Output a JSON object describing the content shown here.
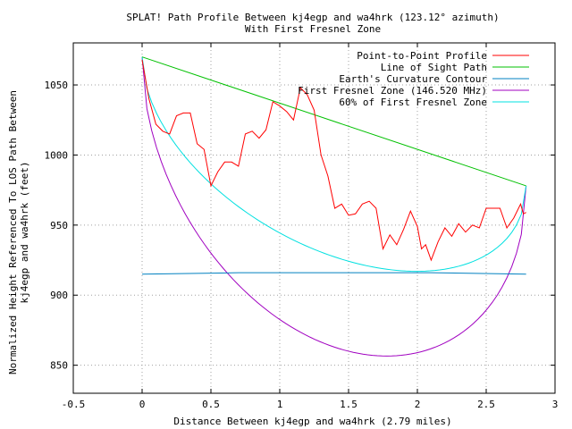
{
  "chart_data": {
    "type": "line",
    "title": "SPLAT! Path Profile Between kj4egp and wa4hrk (123.12° azimuth)",
    "subtitle": "With First Fresnel Zone",
    "xlabel": "Distance Between kj4egp and wa4hrk (2.79 miles)",
    "ylabel_lines": [
      "Normalized Height Referenced To LOS Path Between",
      "kj4egp and wa4hrk (feet)"
    ],
    "xlim": [
      -0.5,
      3
    ],
    "ylim": [
      830,
      1080
    ],
    "xticks": [
      -0.5,
      0,
      0.5,
      1,
      1.5,
      2,
      2.5,
      3
    ],
    "xtick_labels": [
      "-0.5",
      "0",
      "0.5",
      "1",
      "1.5",
      "2",
      "2.5",
      "3"
    ],
    "yticks": [
      850,
      900,
      950,
      1000,
      1050
    ],
    "ytick_labels": [
      "850",
      "900",
      "950",
      "1000",
      "1050"
    ],
    "grid": true,
    "legend_position": "top-right",
    "series": [
      {
        "name": "Point-to-Point Profile",
        "color": "#ff0000",
        "points": [
          [
            0,
            1068
          ],
          [
            0.05,
            1040
          ],
          [
            0.1,
            1022
          ],
          [
            0.15,
            1017
          ],
          [
            0.2,
            1015
          ],
          [
            0.25,
            1028
          ],
          [
            0.3,
            1030
          ],
          [
            0.35,
            1030
          ],
          [
            0.4,
            1008
          ],
          [
            0.45,
            1004
          ],
          [
            0.5,
            978
          ],
          [
            0.55,
            988
          ],
          [
            0.6,
            995
          ],
          [
            0.65,
            995
          ],
          [
            0.7,
            992
          ],
          [
            0.75,
            1015
          ],
          [
            0.8,
            1017
          ],
          [
            0.85,
            1012
          ],
          [
            0.9,
            1018
          ],
          [
            0.95,
            1038
          ],
          [
            1.0,
            1035
          ],
          [
            1.05,
            1031
          ],
          [
            1.1,
            1025
          ],
          [
            1.15,
            1048
          ],
          [
            1.2,
            1043
          ],
          [
            1.25,
            1032
          ],
          [
            1.3,
            1000
          ],
          [
            1.35,
            985
          ],
          [
            1.4,
            962
          ],
          [
            1.45,
            965
          ],
          [
            1.5,
            957
          ],
          [
            1.55,
            958
          ],
          [
            1.6,
            965
          ],
          [
            1.65,
            967
          ],
          [
            1.7,
            962
          ],
          [
            1.75,
            933
          ],
          [
            1.8,
            943
          ],
          [
            1.85,
            936
          ],
          [
            1.9,
            947
          ],
          [
            1.95,
            960
          ],
          [
            2.0,
            949
          ],
          [
            2.03,
            933
          ],
          [
            2.06,
            936
          ],
          [
            2.1,
            925
          ],
          [
            2.15,
            938
          ],
          [
            2.2,
            948
          ],
          [
            2.25,
            942
          ],
          [
            2.3,
            951
          ],
          [
            2.35,
            945
          ],
          [
            2.4,
            950
          ],
          [
            2.45,
            948
          ],
          [
            2.5,
            962
          ],
          [
            2.55,
            962
          ],
          [
            2.6,
            962
          ],
          [
            2.65,
            948
          ],
          [
            2.7,
            955
          ],
          [
            2.75,
            965
          ],
          [
            2.77,
            958
          ],
          [
            2.79,
            959
          ]
        ]
      },
      {
        "name": "Line of Sight Path",
        "color": "#00c000",
        "points": [
          [
            0,
            1070
          ],
          [
            2.79,
            978
          ]
        ]
      },
      {
        "name": "Earth's Curvature Contour",
        "color": "#0080c0",
        "points": [
          [
            0,
            915
          ],
          [
            0.7,
            916
          ],
          [
            1.4,
            916
          ],
          [
            2.1,
            916
          ],
          [
            2.79,
            915
          ]
        ]
      },
      {
        "name": "First Fresnel Zone (146.520 MHz)",
        "color": "#a000c0",
        "fresnel_factor": 1.0
      },
      {
        "name": "60% of First Fresnel Zone",
        "color": "#00e0e0",
        "fresnel_factor": 0.6
      }
    ],
    "fresnel": {
      "distance": 2.79,
      "los_start": 1070,
      "los_end": 978,
      "max_radius": 161
    }
  }
}
